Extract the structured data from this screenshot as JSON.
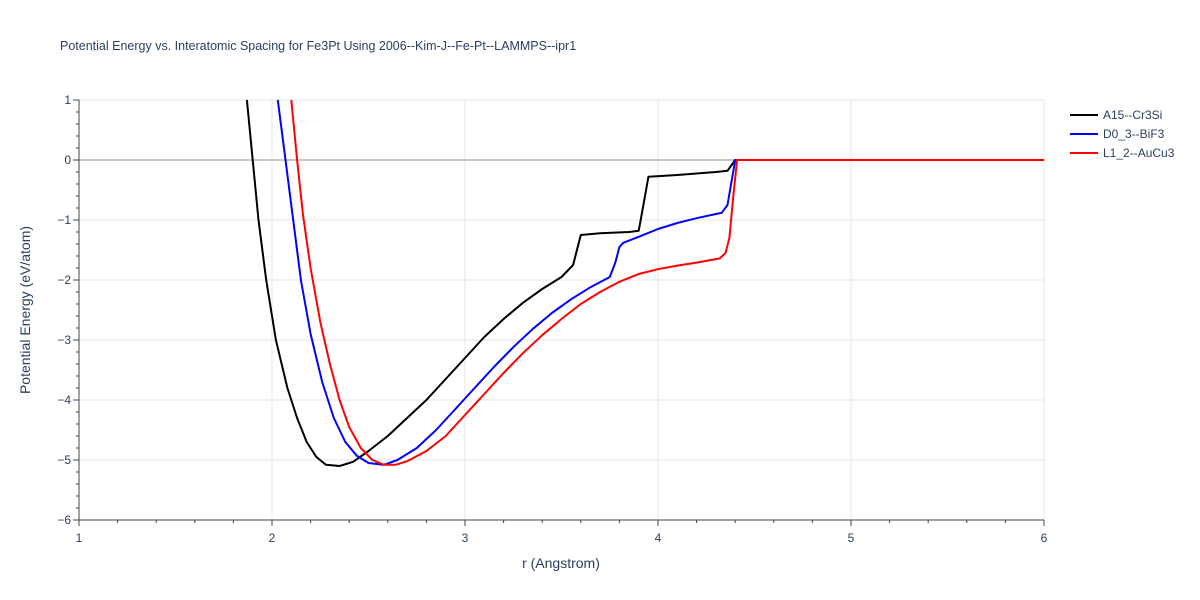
{
  "chart_data": {
    "type": "line",
    "title": "Potential Energy vs. Interatomic Spacing for Fe3Pt Using 2006--Kim-J--Fe-Pt--LAMMPS--ipr1",
    "xlabel": "r (Angstrom)",
    "ylabel": "Potential Energy (eV/atom)",
    "xlim": [
      1,
      6
    ],
    "ylim": [
      -6,
      1
    ],
    "xticks": [
      1,
      2,
      3,
      4,
      5,
      6
    ],
    "yticks": [
      -6,
      -5,
      -4,
      -3,
      -2,
      -1,
      0,
      1
    ],
    "ytick_labels": [
      "−6",
      "−5",
      "−4",
      "−3",
      "−2",
      "−1",
      "0",
      "1"
    ],
    "grid": true,
    "legend_position": "top-right",
    "series": [
      {
        "name": "A15--Cr3Si",
        "color": "#000000",
        "points": [
          [
            1.87,
            1.0
          ],
          [
            1.9,
            0.0
          ],
          [
            1.93,
            -1.0
          ],
          [
            1.97,
            -2.0
          ],
          [
            2.02,
            -3.0
          ],
          [
            2.08,
            -3.8
          ],
          [
            2.13,
            -4.3
          ],
          [
            2.18,
            -4.7
          ],
          [
            2.23,
            -4.95
          ],
          [
            2.28,
            -5.08
          ],
          [
            2.35,
            -5.1
          ],
          [
            2.42,
            -5.03
          ],
          [
            2.5,
            -4.85
          ],
          [
            2.6,
            -4.6
          ],
          [
            2.7,
            -4.3
          ],
          [
            2.8,
            -4.0
          ],
          [
            2.9,
            -3.65
          ],
          [
            3.0,
            -3.3
          ],
          [
            3.1,
            -2.95
          ],
          [
            3.2,
            -2.65
          ],
          [
            3.3,
            -2.38
          ],
          [
            3.4,
            -2.15
          ],
          [
            3.5,
            -1.95
          ],
          [
            3.56,
            -1.75
          ],
          [
            3.6,
            -1.25
          ],
          [
            3.7,
            -1.22
          ],
          [
            3.85,
            -1.2
          ],
          [
            3.9,
            -1.18
          ],
          [
            3.93,
            -0.65
          ],
          [
            3.95,
            -0.28
          ],
          [
            4.1,
            -0.25
          ],
          [
            4.3,
            -0.2
          ],
          [
            4.36,
            -0.18
          ],
          [
            4.4,
            0.0
          ],
          [
            4.5,
            0.0
          ],
          [
            5.0,
            0.0
          ],
          [
            6.0,
            0.0
          ]
        ]
      },
      {
        "name": "D0_3--BiF3",
        "color": "#0000ff",
        "points": [
          [
            2.03,
            1.0
          ],
          [
            2.07,
            0.0
          ],
          [
            2.11,
            -1.0
          ],
          [
            2.15,
            -2.0
          ],
          [
            2.2,
            -2.9
          ],
          [
            2.26,
            -3.7
          ],
          [
            2.32,
            -4.3
          ],
          [
            2.38,
            -4.7
          ],
          [
            2.44,
            -4.93
          ],
          [
            2.5,
            -5.05
          ],
          [
            2.58,
            -5.08
          ],
          [
            2.65,
            -5.0
          ],
          [
            2.75,
            -4.8
          ],
          [
            2.85,
            -4.5
          ],
          [
            2.95,
            -4.15
          ],
          [
            3.05,
            -3.8
          ],
          [
            3.15,
            -3.45
          ],
          [
            3.25,
            -3.12
          ],
          [
            3.35,
            -2.82
          ],
          [
            3.45,
            -2.55
          ],
          [
            3.55,
            -2.32
          ],
          [
            3.65,
            -2.12
          ],
          [
            3.75,
            -1.95
          ],
          [
            3.78,
            -1.7
          ],
          [
            3.8,
            -1.45
          ],
          [
            3.82,
            -1.38
          ],
          [
            3.9,
            -1.28
          ],
          [
            4.0,
            -1.15
          ],
          [
            4.1,
            -1.05
          ],
          [
            4.2,
            -0.97
          ],
          [
            4.3,
            -0.9
          ],
          [
            4.33,
            -0.88
          ],
          [
            4.36,
            -0.75
          ],
          [
            4.4,
            0.0
          ],
          [
            4.5,
            0.0
          ],
          [
            5.0,
            0.0
          ],
          [
            6.0,
            0.0
          ]
        ]
      },
      {
        "name": "L1_2--AuCu3",
        "color": "#ff0000",
        "points": [
          [
            2.1,
            1.0
          ],
          [
            2.13,
            0.0
          ],
          [
            2.16,
            -0.9
          ],
          [
            2.2,
            -1.8
          ],
          [
            2.25,
            -2.7
          ],
          [
            2.3,
            -3.4
          ],
          [
            2.35,
            -4.0
          ],
          [
            2.4,
            -4.45
          ],
          [
            2.46,
            -4.8
          ],
          [
            2.52,
            -5.0
          ],
          [
            2.58,
            -5.08
          ],
          [
            2.64,
            -5.08
          ],
          [
            2.7,
            -5.02
          ],
          [
            2.8,
            -4.85
          ],
          [
            2.9,
            -4.6
          ],
          [
            3.0,
            -4.25
          ],
          [
            3.1,
            -3.9
          ],
          [
            3.2,
            -3.55
          ],
          [
            3.3,
            -3.22
          ],
          [
            3.4,
            -2.92
          ],
          [
            3.5,
            -2.65
          ],
          [
            3.6,
            -2.4
          ],
          [
            3.7,
            -2.2
          ],
          [
            3.8,
            -2.03
          ],
          [
            3.9,
            -1.9
          ],
          [
            4.0,
            -1.82
          ],
          [
            4.1,
            -1.76
          ],
          [
            4.2,
            -1.71
          ],
          [
            4.32,
            -1.64
          ],
          [
            4.35,
            -1.55
          ],
          [
            4.37,
            -1.3
          ],
          [
            4.39,
            -0.6
          ],
          [
            4.41,
            0.0
          ],
          [
            4.5,
            0.0
          ],
          [
            5.0,
            0.0
          ],
          [
            6.0,
            0.0
          ]
        ]
      }
    ]
  }
}
